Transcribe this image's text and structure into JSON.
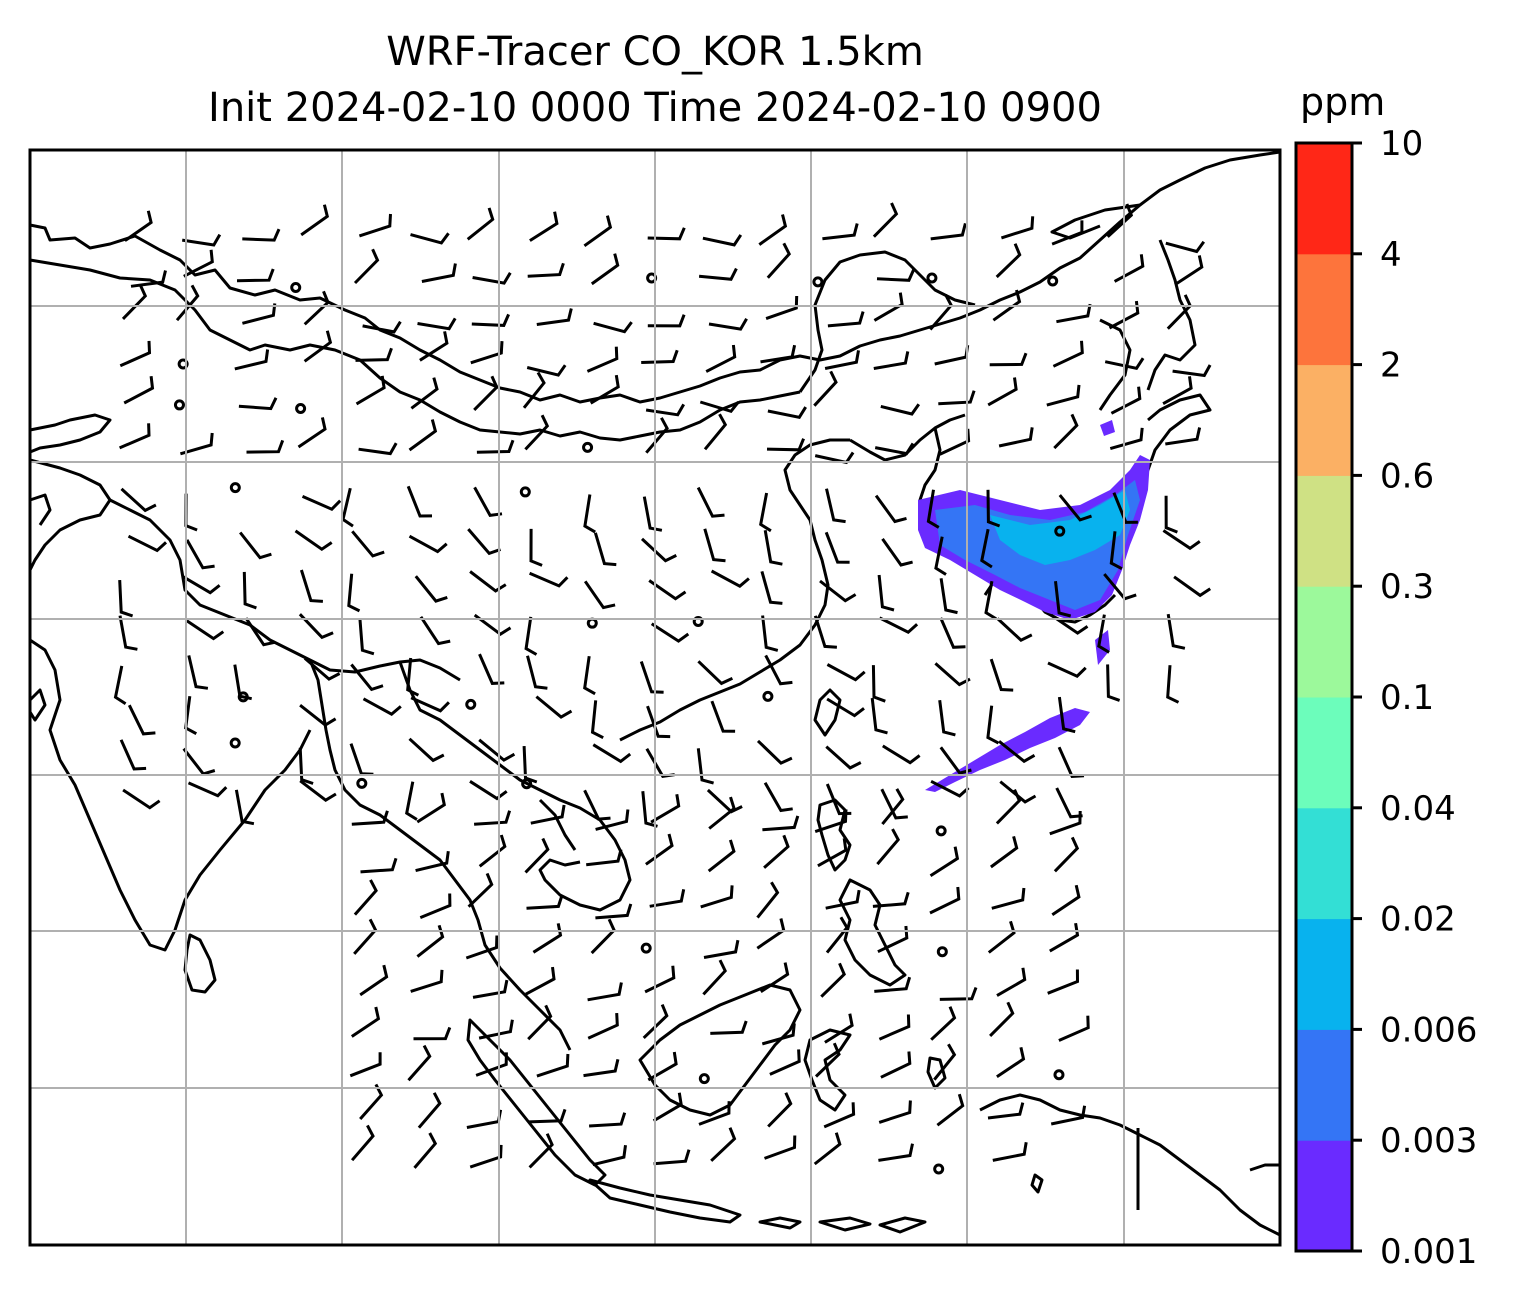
{
  "title": {
    "line1": "WRF-Tracer CO_KOR 1.5km",
    "line2": "Init 2024-02-10 0000 Time 2024-02-10 0900"
  },
  "colorbar": {
    "unit": "ppm",
    "levels": [
      "0.001",
      "0.003",
      "0.006",
      "0.02",
      "0.04",
      "0.1",
      "0.3",
      "0.6",
      "2",
      "4",
      "10"
    ],
    "colors": [
      "#6a2bff",
      "#3475f5",
      "#08b2ee",
      "#33dfd5",
      "#6cfdbb",
      "#9cf99b",
      "#cfe184",
      "#fbb064",
      "#fd743c",
      "#ff2717"
    ]
  },
  "map": {
    "gridlines": true,
    "grid_color": "#b0b0b0",
    "coastline_color": "#000000",
    "tracer_plume_colors": [
      "#6a2bff",
      "#3475f5",
      "#08b2ee"
    ]
  }
}
